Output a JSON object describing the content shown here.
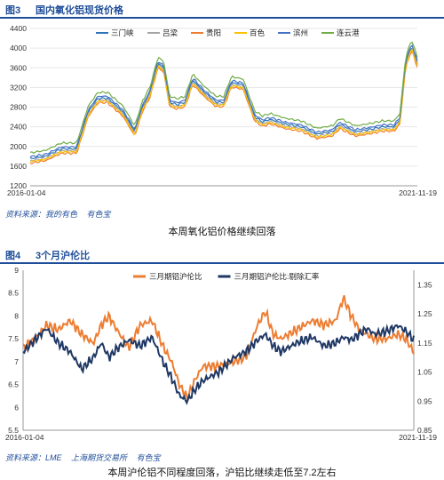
{
  "figure1": {
    "number": "图3",
    "title": "国内氧化铝现货价格",
    "source": [
      "资料来源：我的有色",
      "有色宝"
    ],
    "caption": "本周氧化铝价格继续回落"
  },
  "figure2": {
    "number": "图4",
    "title": "3个月沪伦比",
    "source": [
      "资料来源：LME",
      "上海期货交易所",
      "有色宝"
    ],
    "caption": "本周沪伦铝不同程度回落，沪铝比继续走低至7.2左右"
  },
  "chart_data": [
    {
      "type": "line",
      "x_start": "2016-01-04",
      "x_end": "2021-11-19",
      "ylim": [
        1200,
        4400
      ],
      "yticks": [
        1200,
        1600,
        2000,
        2400,
        2800,
        3200,
        3600,
        4000,
        4400
      ],
      "ytick_labels": [
        "1200",
        "1600",
        "2000",
        "2400",
        "2800",
        "3200",
        "3600",
        "4000",
        "4400"
      ],
      "xtick_labels": [
        "2016-01-04",
        "2021-11-19"
      ],
      "legend_position": "top",
      "x": [
        0,
        0.04,
        0.08,
        0.12,
        0.15,
        0.175,
        0.2,
        0.24,
        0.27,
        0.29,
        0.31,
        0.33,
        0.345,
        0.36,
        0.38,
        0.4,
        0.42,
        0.45,
        0.48,
        0.5,
        0.52,
        0.55,
        0.58,
        0.6,
        0.62,
        0.66,
        0.7,
        0.74,
        0.78,
        0.8,
        0.84,
        0.88,
        0.91,
        0.94,
        0.955,
        0.97,
        0.985,
        1.0
      ],
      "base": [
        1750,
        1800,
        1950,
        1950,
        2700,
        2980,
        2980,
        2700,
        2300,
        2800,
        3100,
        3700,
        3600,
        2900,
        2850,
        2900,
        3350,
        3100,
        2900,
        2900,
        3300,
        3250,
        2600,
        2500,
        2550,
        2450,
        2400,
        2250,
        2300,
        2450,
        2300,
        2350,
        2400,
        2400,
        2550,
        3700,
        4050,
        3700
      ],
      "series": [
        {
          "name": "三门峡",
          "color": "#2e75b6",
          "offset": 0
        },
        {
          "name": "吕梁",
          "color": "#a5a5a5",
          "offset": -40
        },
        {
          "name": "贵阳",
          "color": "#ed7d31",
          "offset": -90
        },
        {
          "name": "百色",
          "color": "#ffc000",
          "offset": -60
        },
        {
          "name": "滨州",
          "color": "#4472c4",
          "offset": 40
        },
        {
          "name": "连云港",
          "color": "#70ad47",
          "offset": 120
        }
      ]
    },
    {
      "type": "line",
      "x_start": "2016-01-04",
      "x_end": "2021-11-19",
      "ylim_left": [
        5.5,
        9
      ],
      "yticks_left": [
        5.5,
        6,
        6.5,
        7,
        7.5,
        8,
        8.5,
        9
      ],
      "ytick_labels_left": [
        "5.5",
        "6",
        "6.5",
        "7",
        "7.5",
        "8",
        "8.5",
        "9"
      ],
      "ylim_right": [
        0.85,
        1.4
      ],
      "yticks_right": [
        0.85,
        0.95,
        1.05,
        1.15,
        1.25,
        1.35
      ],
      "ytick_labels_right": [
        "0.85",
        "0.95",
        "1.05",
        "1.15",
        "1.25",
        "1.35"
      ],
      "xtick_labels": [
        "2016-01-04",
        "2021-11-19"
      ],
      "legend_position": "top",
      "series": [
        {
          "name": "三月期铝沪伦比",
          "axis": "left",
          "color": "#ed7d31",
          "x": [
            0,
            0.03,
            0.06,
            0.09,
            0.12,
            0.15,
            0.18,
            0.2,
            0.22,
            0.24,
            0.27,
            0.3,
            0.33,
            0.36,
            0.38,
            0.4,
            0.42,
            0.44,
            0.46,
            0.5,
            0.54,
            0.57,
            0.6,
            0.62,
            0.64,
            0.66,
            0.7,
            0.74,
            0.77,
            0.8,
            0.82,
            0.84,
            0.86,
            0.88,
            0.9,
            0.93,
            0.96,
            0.98,
            1.0
          ],
          "values": [
            7.3,
            7.5,
            7.8,
            7.7,
            7.9,
            7.6,
            7.4,
            7.8,
            8.0,
            7.7,
            7.3,
            7.8,
            7.9,
            7.3,
            7.0,
            6.5,
            6.2,
            6.6,
            6.9,
            6.9,
            7.0,
            7.1,
            7.8,
            8.1,
            7.6,
            7.5,
            7.7,
            7.9,
            7.8,
            7.9,
            8.4,
            8.0,
            7.7,
            7.6,
            7.5,
            7.5,
            7.6,
            7.5,
            7.2
          ]
        },
        {
          "name": "三月期铝沪伦比:剔除汇率",
          "axis": "right",
          "color": "#1f3864",
          "x": [
            0,
            0.03,
            0.06,
            0.09,
            0.12,
            0.15,
            0.18,
            0.2,
            0.22,
            0.24,
            0.27,
            0.3,
            0.33,
            0.36,
            0.38,
            0.4,
            0.42,
            0.44,
            0.46,
            0.5,
            0.54,
            0.57,
            0.6,
            0.62,
            0.64,
            0.66,
            0.7,
            0.74,
            0.77,
            0.8,
            0.82,
            0.84,
            0.86,
            0.88,
            0.9,
            0.93,
            0.96,
            0.98,
            1.0
          ],
          "values": [
            1.12,
            1.16,
            1.2,
            1.15,
            1.12,
            1.06,
            1.1,
            1.15,
            1.1,
            1.13,
            1.16,
            1.14,
            1.17,
            1.08,
            1.03,
            0.97,
            0.95,
            0.99,
            1.02,
            1.05,
            1.1,
            1.12,
            1.16,
            1.18,
            1.14,
            1.12,
            1.15,
            1.17,
            1.14,
            1.15,
            1.17,
            1.16,
            1.18,
            1.2,
            1.18,
            1.19,
            1.21,
            1.19,
            1.16
          ]
        }
      ]
    }
  ]
}
